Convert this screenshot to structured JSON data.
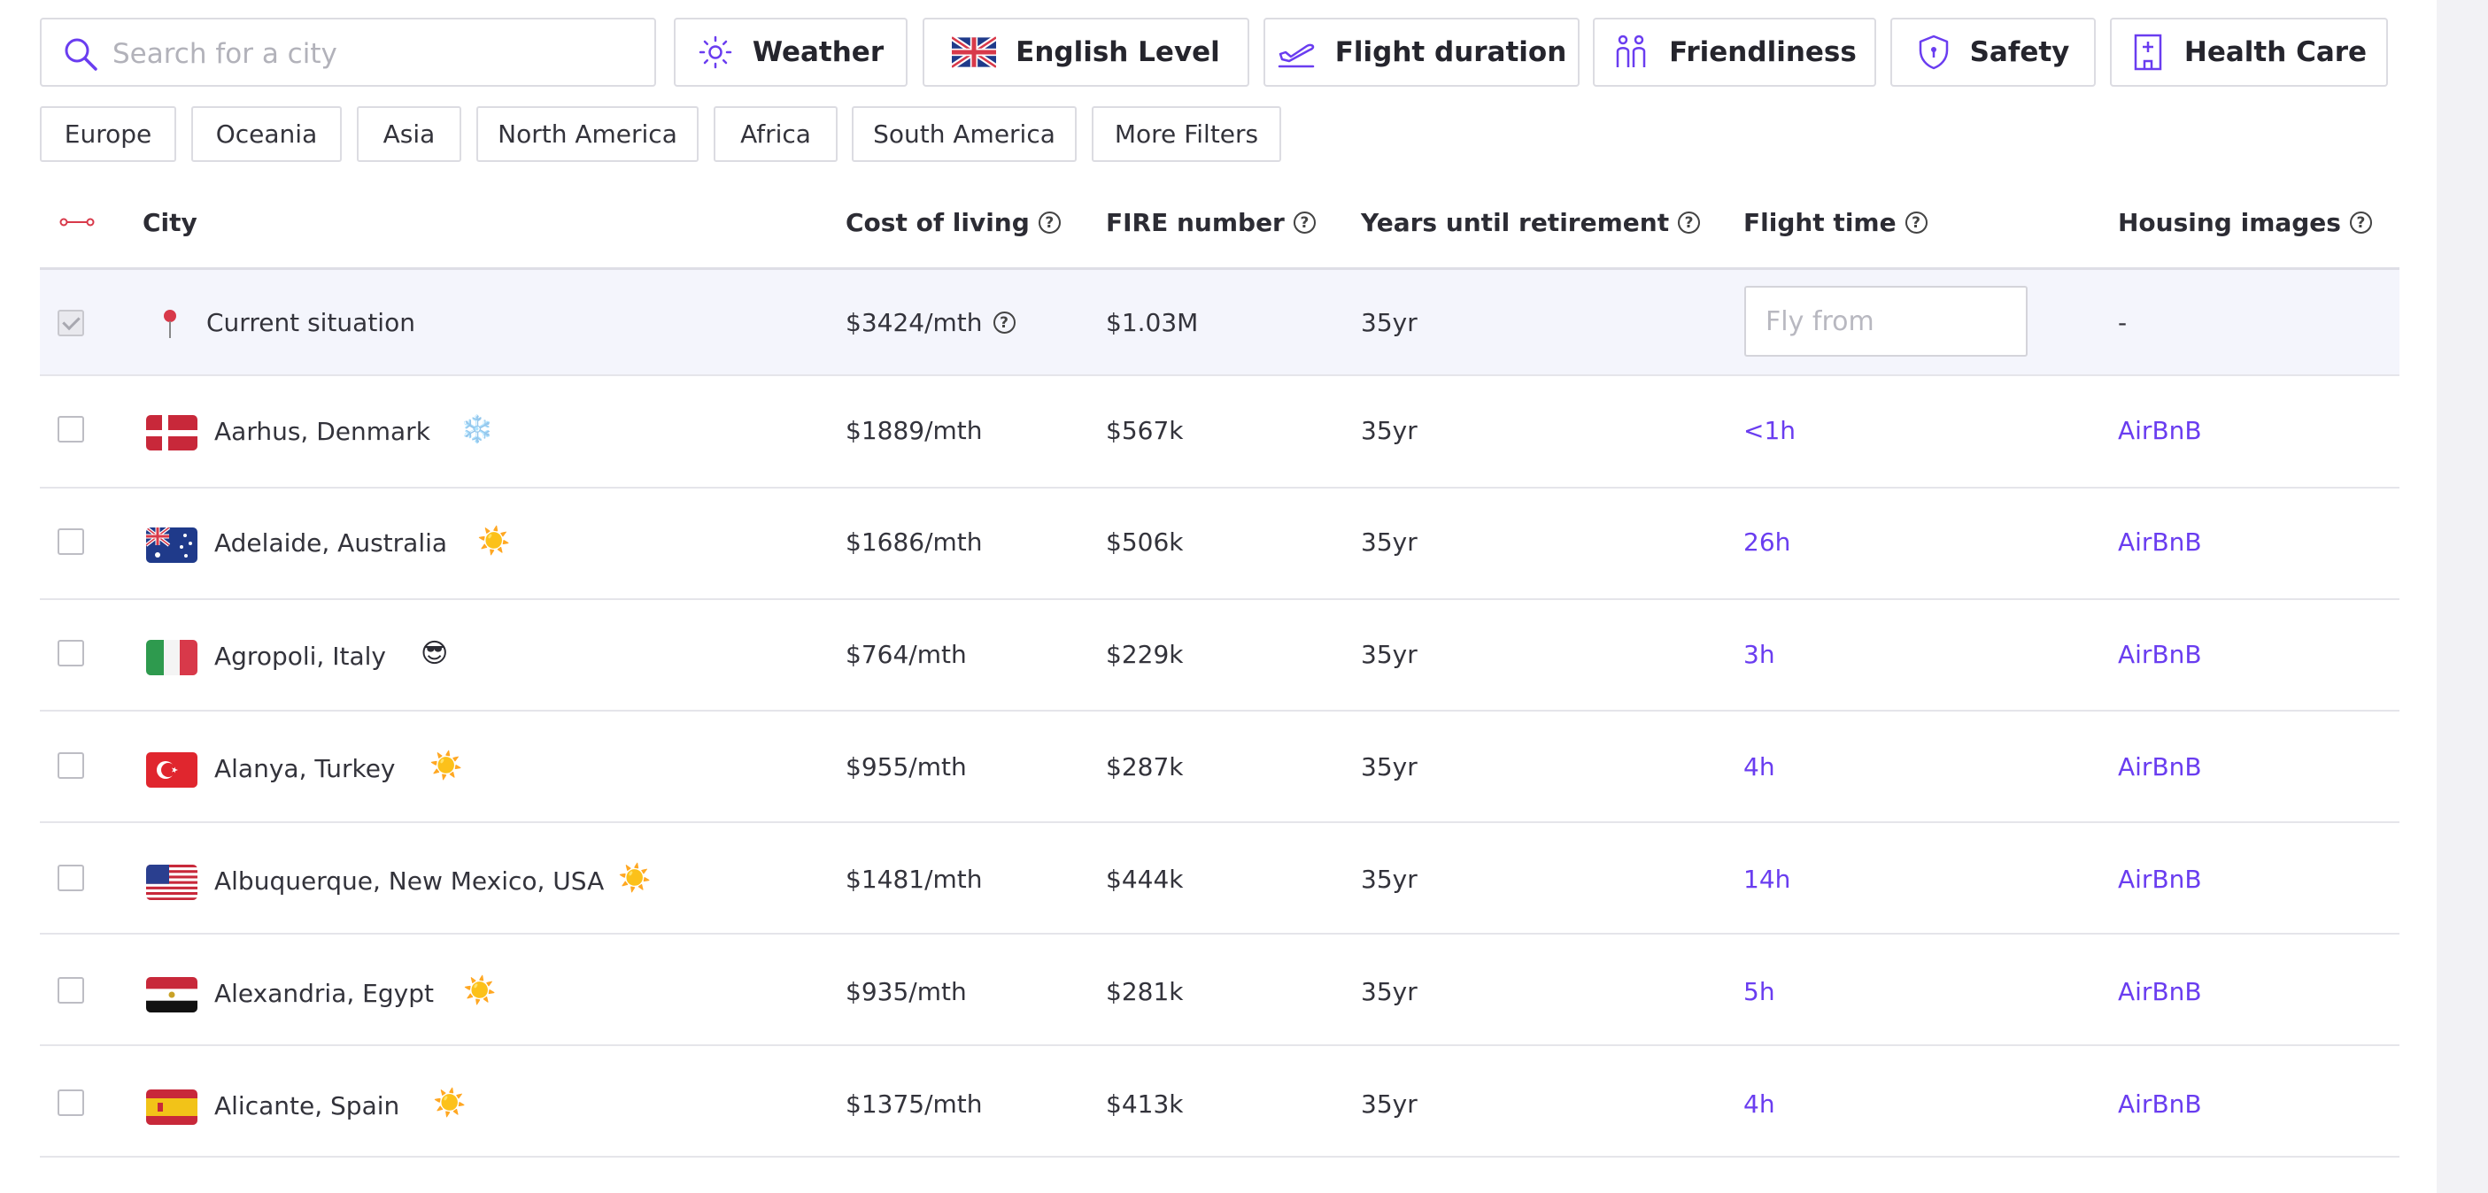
{
  "search": {
    "placeholder": "Search for a city",
    "value": ""
  },
  "filters": [
    {
      "label": "Weather",
      "icon": "sun-icon"
    },
    {
      "label": "English Level",
      "icon": "uk-flag-icon"
    },
    {
      "label": "Flight duration",
      "icon": "plane-takeoff-icon"
    },
    {
      "label": "Friendliness",
      "icon": "people-icon"
    },
    {
      "label": "Safety",
      "icon": "shield-icon"
    },
    {
      "label": "Health Care",
      "icon": "hospital-icon"
    }
  ],
  "regions": [
    "Europe",
    "Oceania",
    "Asia",
    "North America",
    "Africa",
    "South America",
    "More Filters"
  ],
  "table": {
    "columns": {
      "city": "City",
      "cost": "Cost of living",
      "fire": "FIRE number",
      "years": "Years until retirement",
      "flight": "Flight time",
      "housing": "Housing images"
    },
    "current": {
      "label": "Current situation",
      "cost": "$3424/mth",
      "fire": "$1.03M",
      "years": "35yr",
      "fly_from_placeholder": "Fly from",
      "housing": "-"
    },
    "rows": [
      {
        "city": "Aarhus, Denmark",
        "weather": "❄️",
        "cost": "$1889/mth",
        "fire": "$567k",
        "years": "35yr",
        "flight": "<1h",
        "housing": "AirBnB",
        "flag": "denmark-flag-icon"
      },
      {
        "city": "Adelaide, Australia",
        "weather": "☀️",
        "cost": "$1686/mth",
        "fire": "$506k",
        "years": "35yr",
        "flight": "26h",
        "housing": "AirBnB",
        "flag": "australia-flag-icon"
      },
      {
        "city": "Agropoli, Italy",
        "weather": "😎",
        "cost": "$764/mth",
        "fire": "$229k",
        "years": "35yr",
        "flight": "3h",
        "housing": "AirBnB",
        "flag": "italy-flag-icon"
      },
      {
        "city": "Alanya, Turkey",
        "weather": "☀️",
        "cost": "$955/mth",
        "fire": "$287k",
        "years": "35yr",
        "flight": "4h",
        "housing": "AirBnB",
        "flag": "turkey-flag-icon"
      },
      {
        "city": "Albuquerque, New Mexico, USA",
        "weather": "☀️",
        "cost": "$1481/mth",
        "fire": "$444k",
        "years": "35yr",
        "flight": "14h",
        "housing": "AirBnB",
        "flag": "usa-flag-icon"
      },
      {
        "city": "Alexandria, Egypt",
        "weather": "☀️",
        "cost": "$935/mth",
        "fire": "$281k",
        "years": "35yr",
        "flight": "5h",
        "housing": "AirBnB",
        "flag": "egypt-flag-icon"
      },
      {
        "city": "Alicante, Spain",
        "weather": "☀️",
        "cost": "$1375/mth",
        "fire": "$413k",
        "years": "35yr",
        "flight": "4h",
        "housing": "AirBnB",
        "flag": "spain-flag-icon"
      }
    ]
  },
  "colors": {
    "accent": "#6a3df0",
    "pin": "#d8394a",
    "current_row_bg": "#f4f5fc"
  }
}
